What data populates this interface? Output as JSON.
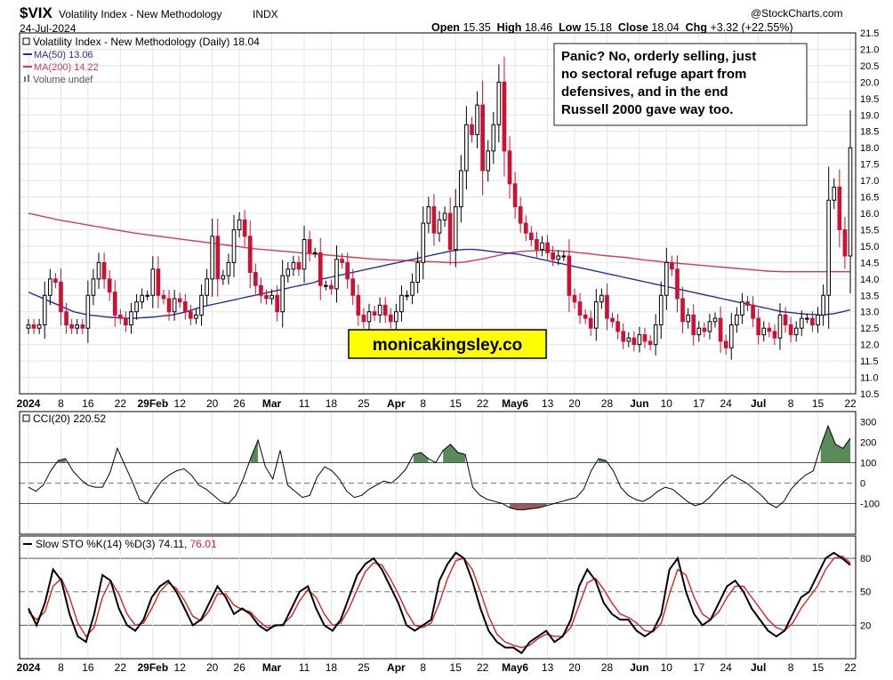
{
  "header": {
    "symbol": "$VIX",
    "name": "Volatility Index - New Methodology",
    "exchange": "INDX",
    "date": "24-Jul-2024",
    "copyright": "@StockCharts.com",
    "open_label": "Open",
    "open": "15.35",
    "high_label": "High",
    "high": "18.46",
    "low_label": "Low",
    "low": "15.18",
    "close_label": "Close",
    "close": "18.04",
    "chg_label": "Chg",
    "chg": "+3.32 (+22.55%)"
  },
  "legend": {
    "main": "Volatility Index - New Methodology (Daily) 18.04",
    "ma50": "MA(50) 13.06",
    "ma200": "MA(200) 14.22",
    "volume": "Volume undef",
    "cci": "CCI(20) 220.52",
    "sto_prefix": "Slow STO %K(14) %D(3) 74.11,",
    "sto_d": "76.01"
  },
  "annotation": {
    "lines": [
      "Panic? No, orderly selling, just",
      "no sectoral refuge apart from",
      "defensives, and in the end",
      "Russell 2000 gave way too."
    ]
  },
  "watermark": "monicakingsley.co",
  "colors": {
    "up": "#000000",
    "down": "#cc1133",
    "ma50": "#2a2aa0",
    "ma200": "#d83a4a",
    "cci_pos": "#5a8a5a",
    "cci_neg": "#9a5a5a",
    "sto_k": "#000000",
    "sto_d": "#e02020",
    "watermark_bg": "#ffff00"
  },
  "chart_data": [
    {
      "type": "candlestick",
      "title": "Volatility Index - New Methodology (Daily) 18.04",
      "ylim": [
        10.5,
        21.5
      ],
      "y_ticks": [
        "10.5",
        "11.0",
        "11.5",
        "12.0",
        "12.5",
        "13.0",
        "13.5",
        "14.0",
        "14.5",
        "15.0",
        "15.5",
        "16.0",
        "16.5",
        "17.0",
        "17.5",
        "18.0",
        "18.5",
        "19.0",
        "19.5",
        "20.0",
        "20.5",
        "21.0",
        "21.5"
      ],
      "x_ticks": [
        "2024",
        "8",
        "16",
        "22",
        "29Feb",
        "12",
        "20",
        "26",
        "Mar",
        "11",
        "18",
        "25",
        "Apr",
        "8",
        "15",
        "22",
        "May6",
        "13",
        "20",
        "28",
        "Jun",
        "10",
        "17",
        "24",
        "Jul",
        "8",
        "15",
        "22"
      ],
      "closes": [
        12.6,
        12.5,
        12.6,
        13.5,
        14.0,
        13.9,
        13.0,
        12.6,
        12.5,
        12.6,
        12.5,
        13.5,
        14.0,
        14.5,
        14.0,
        13.6,
        12.9,
        12.8,
        12.6,
        13.0,
        13.3,
        13.5,
        13.5,
        14.3,
        13.5,
        13.4,
        13.0,
        13.4,
        13.3,
        13.0,
        12.8,
        12.9,
        13.5,
        14.0,
        15.3,
        14.0,
        14.1,
        14.5,
        15.5,
        15.8,
        15.3,
        14.2,
        13.8,
        13.5,
        13.4,
        13.5,
        13.0,
        14.1,
        14.3,
        14.5,
        14.3,
        15.2,
        14.8,
        14.8,
        13.8,
        13.8,
        13.7,
        14.6,
        14.5,
        14.0,
        13.5,
        12.9,
        12.7,
        13.0,
        12.9,
        13.2,
        12.9,
        12.7,
        13.0,
        13.5,
        13.5,
        13.9,
        14.5,
        15.7,
        16.2,
        15.4,
        15.8,
        16.0,
        14.9,
        16.2,
        17.3,
        18.7,
        18.4,
        19.3,
        17.3,
        17.9,
        18.7,
        20.0,
        17.9,
        16.9,
        16.2,
        15.7,
        15.4,
        15.2,
        14.9,
        15.1,
        14.8,
        14.6,
        14.7,
        14.7,
        13.5,
        13.3,
        12.9,
        12.8,
        12.5,
        13.3,
        13.5,
        12.8,
        12.7,
        12.4,
        12.1,
        12.2,
        12.0,
        12.3,
        12.1,
        12.0,
        12.6,
        13.5,
        14.5,
        14.3,
        13.4,
        12.7,
        12.9,
        12.3,
        12.5,
        12.4,
        12.7,
        12.8,
        12.1,
        11.9,
        12.6,
        12.9,
        13.3,
        13.2,
        12.8,
        12.3,
        12.5,
        12.4,
        12.2,
        12.9,
        12.6,
        12.3,
        12.5,
        12.8,
        12.8,
        12.6,
        12.9,
        13.5,
        16.4,
        16.8,
        15.5,
        14.7,
        18.0
      ],
      "ma50": [
        13.6,
        13.5,
        13.4,
        13.3,
        13.2,
        13.1,
        13.0,
        12.95,
        12.9,
        12.88,
        12.85,
        12.83,
        12.82,
        12.8,
        12.8,
        12.82,
        12.83,
        12.85,
        12.88,
        12.9,
        12.95,
        13.0,
        13.08,
        13.15,
        13.2,
        13.25,
        13.3,
        13.35,
        13.4,
        13.45,
        13.5,
        13.55,
        13.6,
        13.65,
        13.7,
        13.75,
        13.8,
        13.85,
        13.9,
        14.0,
        14.05,
        14.1,
        14.15,
        14.2,
        14.25,
        14.3,
        14.35,
        14.4,
        14.45,
        14.5,
        14.55,
        14.6,
        14.65,
        14.7,
        14.75,
        14.8,
        14.85,
        14.88,
        14.9,
        14.9,
        14.88,
        14.85,
        14.82,
        14.8,
        14.78,
        14.75,
        14.7,
        14.65,
        14.6,
        14.55,
        14.5,
        14.45,
        14.4,
        14.35,
        14.3,
        14.25,
        14.2,
        14.15,
        14.1,
        14.05,
        14.0,
        13.95,
        13.9,
        13.85,
        13.8,
        13.75,
        13.7,
        13.65,
        13.6,
        13.55,
        13.5,
        13.45,
        13.4,
        13.35,
        13.3,
        13.25,
        13.2,
        13.15,
        13.1,
        13.05,
        13.0,
        12.98,
        12.95,
        12.93,
        12.92,
        12.9,
        12.92,
        12.95,
        13.0,
        13.06
      ],
      "ma200": [
        16.0,
        15.95,
        15.9,
        15.85,
        15.8,
        15.76,
        15.72,
        15.68,
        15.64,
        15.6,
        15.56,
        15.52,
        15.48,
        15.44,
        15.4,
        15.37,
        15.34,
        15.31,
        15.28,
        15.25,
        15.22,
        15.19,
        15.16,
        15.13,
        15.1,
        15.07,
        15.04,
        15.01,
        14.98,
        14.95,
        14.92,
        14.9,
        14.88,
        14.86,
        14.84,
        14.82,
        14.8,
        14.78,
        14.76,
        14.74,
        14.72,
        14.7,
        14.68,
        14.66,
        14.64,
        14.62,
        14.6,
        14.59,
        14.58,
        14.57,
        14.56,
        14.55,
        14.54,
        14.53,
        14.52,
        14.51,
        14.5,
        14.5,
        14.52,
        14.56,
        14.6,
        14.65,
        14.7,
        14.75,
        14.8,
        14.83,
        14.85,
        14.86,
        14.87,
        14.87,
        14.86,
        14.85,
        14.83,
        14.8,
        14.78,
        14.75,
        14.72,
        14.7,
        14.68,
        14.66,
        14.63,
        14.6,
        14.57,
        14.55,
        14.52,
        14.5,
        14.48,
        14.46,
        14.44,
        14.42,
        14.4,
        14.38,
        14.36,
        14.34,
        14.32,
        14.3,
        14.28,
        14.26,
        14.24,
        14.23,
        14.22,
        14.22,
        14.22,
        14.22,
        14.22,
        14.22,
        14.22,
        14.22,
        14.22,
        14.22
      ]
    },
    {
      "type": "line",
      "title": "CCI(20) 220.52",
      "ylim": [
        -250,
        350
      ],
      "y_ticks": [
        "-100",
        "0",
        "100",
        "200",
        "300"
      ],
      "values": [
        -20,
        -40,
        -10,
        60,
        110,
        120,
        60,
        20,
        -10,
        -20,
        -20,
        50,
        170,
        90,
        10,
        -80,
        -100,
        -40,
        10,
        40,
        60,
        70,
        40,
        -10,
        -30,
        -60,
        -90,
        -100,
        -60,
        20,
        120,
        210,
        80,
        20,
        160,
        -10,
        -40,
        -70,
        -60,
        30,
        80,
        60,
        20,
        -40,
        -70,
        -60,
        -30,
        -10,
        10,
        0,
        30,
        70,
        140,
        150,
        120,
        100,
        160,
        190,
        150,
        140,
        -20,
        -60,
        -80,
        -90,
        -100,
        -120,
        -130,
        -130,
        -125,
        -120,
        -110,
        -100,
        -90,
        -80,
        -70,
        -30,
        60,
        120,
        110,
        60,
        -20,
        -60,
        -80,
        -90,
        -70,
        -40,
        -20,
        -30,
        -60,
        -90,
        -110,
        -100,
        -70,
        -30,
        10,
        40,
        20,
        0,
        -30,
        -60,
        -100,
        -120,
        -90,
        -30,
        10,
        40,
        60,
        180,
        280,
        190,
        170,
        220
      ],
      "thresholds": [
        100,
        0,
        -100
      ]
    },
    {
      "type": "line",
      "title": "Slow STO %K(14) %D(3) 74.11, 76.01",
      "ylim": [
        -10,
        100
      ],
      "y_ticks": [
        "20",
        "50",
        "80"
      ],
      "k": [
        35,
        20,
        40,
        70,
        60,
        30,
        10,
        5,
        30,
        65,
        60,
        35,
        20,
        15,
        25,
        45,
        55,
        60,
        50,
        35,
        20,
        25,
        40,
        55,
        45,
        30,
        35,
        30,
        20,
        15,
        20,
        20,
        35,
        50,
        55,
        35,
        20,
        15,
        25,
        45,
        65,
        75,
        80,
        70,
        55,
        40,
        20,
        15,
        20,
        25,
        60,
        75,
        85,
        80,
        60,
        35,
        15,
        5,
        0,
        0,
        -5,
        5,
        10,
        15,
        5,
        10,
        25,
        55,
        70,
        60,
        40,
        30,
        25,
        25,
        15,
        10,
        15,
        30,
        70,
        80,
        50,
        30,
        20,
        25,
        40,
        55,
        60,
        50,
        35,
        25,
        15,
        10,
        15,
        30,
        45,
        50,
        65,
        80,
        85,
        80,
        74
      ],
      "d": [
        32,
        25,
        32,
        55,
        62,
        45,
        22,
        10,
        18,
        45,
        60,
        48,
        30,
        20,
        22,
        35,
        50,
        58,
        53,
        42,
        28,
        24,
        33,
        48,
        48,
        38,
        34,
        32,
        24,
        18,
        19,
        21,
        28,
        42,
        52,
        45,
        30,
        20,
        22,
        35,
        52,
        68,
        76,
        74,
        62,
        48,
        32,
        20,
        18,
        22,
        40,
        62,
        78,
        80,
        70,
        50,
        28,
        12,
        5,
        2,
        0,
        2,
        8,
        12,
        10,
        10,
        18,
        38,
        58,
        62,
        52,
        40,
        30,
        27,
        22,
        15,
        14,
        22,
        48,
        70,
        65,
        45,
        30,
        25,
        32,
        45,
        55,
        55,
        45,
        35,
        25,
        18,
        15,
        22,
        35,
        45,
        55,
        70,
        80,
        82,
        76
      ]
    }
  ]
}
